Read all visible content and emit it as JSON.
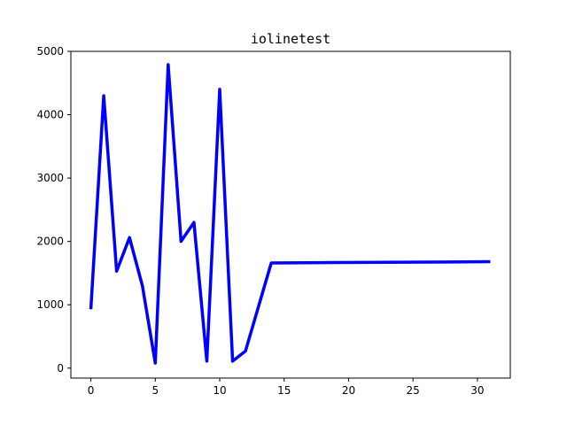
{
  "chart_data": {
    "type": "line",
    "title": "iolinetest",
    "xlabel": "",
    "ylabel": "",
    "xlim": [
      -1.55,
      32.55
    ],
    "ylim": [
      -157,
      5000
    ],
    "xticks": [
      0,
      5,
      10,
      15,
      20,
      25,
      30
    ],
    "yticks": [
      0,
      1000,
      2000,
      3000,
      4000,
      5000
    ],
    "grid": false,
    "legend": "none",
    "series": [
      {
        "color": "#0000ff",
        "x": [
          0,
          1,
          2,
          3,
          4,
          5,
          6,
          7,
          8,
          9,
          10,
          11,
          12,
          14,
          31
        ],
        "values": [
          930,
          4300,
          1530,
          2060,
          1300,
          80,
          4790,
          2000,
          2300,
          110,
          4400,
          110,
          270,
          1660,
          1680
        ]
      }
    ]
  }
}
